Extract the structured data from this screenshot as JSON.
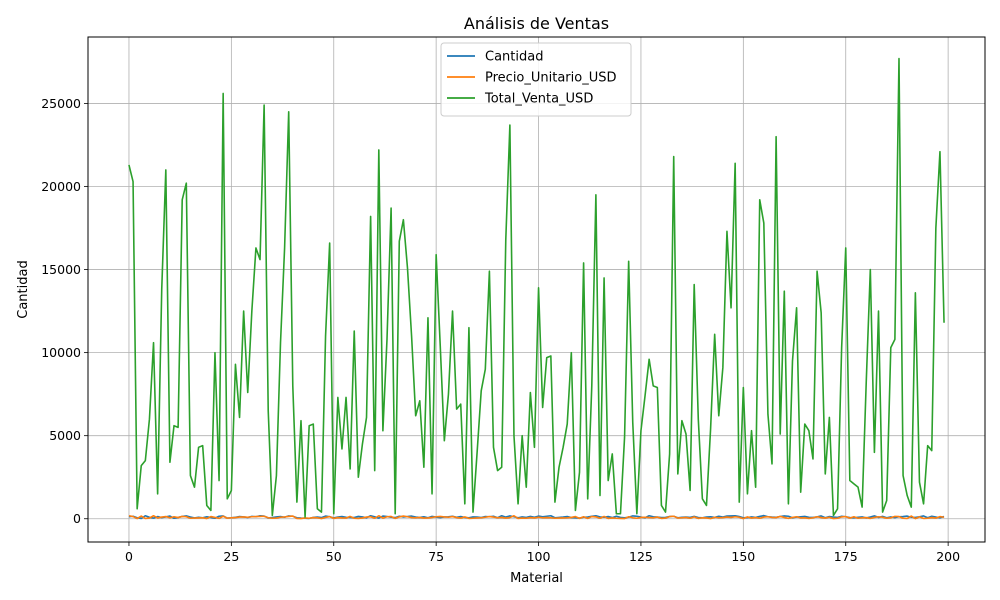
{
  "chart_data": {
    "type": "line",
    "title": "Análisis de Ventas",
    "xlabel": "Material",
    "ylabel": "Cantidad",
    "xlim": [
      -10,
      209
    ],
    "ylim": [
      -1400,
      29000
    ],
    "xticks": [
      0,
      25,
      50,
      75,
      100,
      125,
      150,
      175,
      200
    ],
    "yticks": [
      0,
      5000,
      10000,
      15000,
      20000,
      25000
    ],
    "grid": true,
    "legend_position": "top-center",
    "series": [
      {
        "name": "Cantidad",
        "color": "#1f77b4",
        "values": [
          120,
          150,
          60,
          20,
          180,
          90,
          40,
          130,
          70,
          110,
          160,
          30,
          80,
          140,
          170,
          100,
          50,
          90,
          60,
          120,
          80,
          30,
          150,
          170,
          40,
          60,
          90,
          130,
          110,
          80,
          140,
          120,
          180,
          160,
          50,
          70,
          110,
          130,
          90,
          170,
          150,
          60,
          40,
          30,
          20,
          80,
          100,
          70,
          160,
          120,
          50,
          100,
          130,
          90,
          80,
          70,
          140,
          110,
          60,
          180,
          120,
          40,
          160,
          130,
          90,
          70,
          150,
          110,
          130,
          160,
          100,
          80,
          120,
          60,
          140,
          100,
          70,
          110,
          120,
          150,
          90,
          130,
          80,
          60,
          110,
          100,
          70,
          130,
          120,
          150,
          60,
          180,
          100,
          170,
          120,
          60,
          110,
          80,
          140,
          90,
          160,
          120,
          150,
          180,
          60,
          80,
          100,
          130,
          70,
          60,
          40,
          90,
          100,
          150,
          180,
          110,
          90,
          130,
          70,
          150,
          80,
          60,
          90,
          170,
          150,
          100,
          60,
          180,
          120,
          100,
          70,
          80,
          130,
          150,
          60,
          90,
          100,
          80,
          140,
          70,
          60,
          100,
          120,
          80,
          150,
          100,
          160,
          170,
          180,
          130,
          60,
          70,
          110,
          80,
          140,
          190,
          120,
          100,
          90,
          130,
          170,
          150,
          60,
          100,
          120,
          140,
          90,
          80,
          110,
          170,
          60,
          130,
          100,
          80,
          150,
          120,
          70,
          60,
          90,
          110,
          50,
          100,
          170,
          80,
          140,
          60,
          110,
          70,
          120,
          130,
          160,
          90,
          80,
          120,
          170,
          60,
          150,
          100,
          60,
          130
        ]
      },
      {
        "name": "Precio_Unitario_USD",
        "color": "#ff7f0e",
        "values": [
          180,
          130,
          10,
          160,
          20,
          40,
          180,
          50,
          100,
          130,
          60,
          120,
          70,
          140,
          120,
          30,
          40,
          50,
          60,
          10,
          130,
          80,
          20,
          150,
          30,
          60,
          70,
          100,
          110,
          90,
          120,
          130,
          140,
          150,
          60,
          30,
          40,
          90,
          110,
          140,
          160,
          20,
          10,
          50,
          30,
          70,
          60,
          10,
          80,
          130,
          20,
          70,
          50,
          40,
          140,
          30,
          20,
          50,
          100,
          120,
          30,
          180,
          40,
          120,
          140,
          20,
          110,
          160,
          120,
          70,
          60,
          80,
          40,
          50,
          80,
          120,
          140,
          110,
          90,
          130,
          70,
          40,
          110,
          20,
          30,
          50,
          60,
          90,
          130,
          100,
          60,
          80,
          40,
          70,
          180,
          20,
          40,
          30,
          70,
          50,
          90,
          60,
          70,
          60,
          30,
          40,
          50,
          60,
          80,
          130,
          20,
          120,
          20,
          130,
          110,
          30,
          140,
          20,
          50,
          30,
          20,
          10,
          120,
          60,
          30,
          80,
          90,
          70,
          60,
          100,
          20,
          40,
          130,
          150,
          40,
          60,
          80,
          30,
          110,
          20,
          60,
          50,
          10,
          90,
          60,
          70,
          100,
          80,
          120,
          90,
          10,
          110,
          40,
          80,
          30,
          100,
          120,
          80,
          70,
          140,
          80,
          20,
          80,
          120,
          50,
          60,
          20,
          60,
          120,
          70,
          40,
          90,
          10,
          30,
          110,
          130,
          40,
          120,
          30,
          60,
          70,
          20,
          80,
          120,
          90,
          30,
          60,
          140,
          130,
          30,
          20,
          160,
          10,
          110,
          20,
          30,
          70,
          40,
          130,
          90
        ]
      },
      {
        "name": "Total_Venta_USD",
        "color": "#2ca02c",
        "values": [
          21300,
          20300,
          600,
          3200,
          3500,
          6000,
          10600,
          1500,
          13800,
          21000,
          3400,
          5600,
          5500,
          19200,
          20200,
          2600,
          1900,
          4300,
          4400,
          800,
          500,
          10000,
          2300,
          25600,
          1200,
          1700,
          9300,
          6100,
          12500,
          7600,
          12500,
          16300,
          15600,
          24900,
          6500,
          200,
          2600,
          10600,
          16300,
          24500,
          8000,
          1000,
          5900,
          100,
          5600,
          5700,
          600,
          400,
          11000,
          16600,
          300,
          7300,
          4200,
          7300,
          3000,
          11300,
          2500,
          4500,
          6100,
          18200,
          2900,
          22200,
          5300,
          10800,
          18700,
          300,
          16700,
          18000,
          15100,
          11000,
          6200,
          7100,
          3100,
          12100,
          1500,
          15900,
          10400,
          4700,
          7500,
          12500,
          6600,
          6900,
          900,
          11500,
          400,
          4000,
          7700,
          9000,
          14900,
          4300,
          2900,
          3100,
          16800,
          23700,
          5000,
          900,
          5000,
          1900,
          7600,
          4300,
          13900,
          6700,
          9700,
          9800,
          1000,
          3100,
          4300,
          5700,
          10000,
          500,
          2800,
          15400,
          1200,
          8000,
          19500,
          1400,
          14500,
          2300,
          3900,
          300,
          300,
          4900,
          15500,
          5800,
          300,
          5300,
          7400,
          9600,
          8000,
          7900,
          800,
          400,
          3900,
          21800,
          2700,
          5900,
          5100,
          1700,
          14100,
          6000,
          1200,
          800,
          5400,
          11100,
          6200,
          9100,
          17300,
          12700,
          21400,
          1000,
          7900,
          1500,
          5300,
          1900,
          19200,
          17800,
          6300,
          3300,
          23000,
          5100,
          13700,
          900,
          9500,
          12700,
          1600,
          5700,
          5300,
          3600,
          14900,
          12400,
          2700,
          6100,
          200,
          600,
          10300,
          16300,
          2300,
          2100,
          1900,
          700,
          8200,
          15000,
          4000,
          12500,
          400,
          1100,
          10300,
          10800,
          27700,
          2600,
          1400,
          700,
          13600,
          2200,
          900,
          4400,
          4100,
          17500,
          22100,
          11800
        ]
      }
    ]
  }
}
